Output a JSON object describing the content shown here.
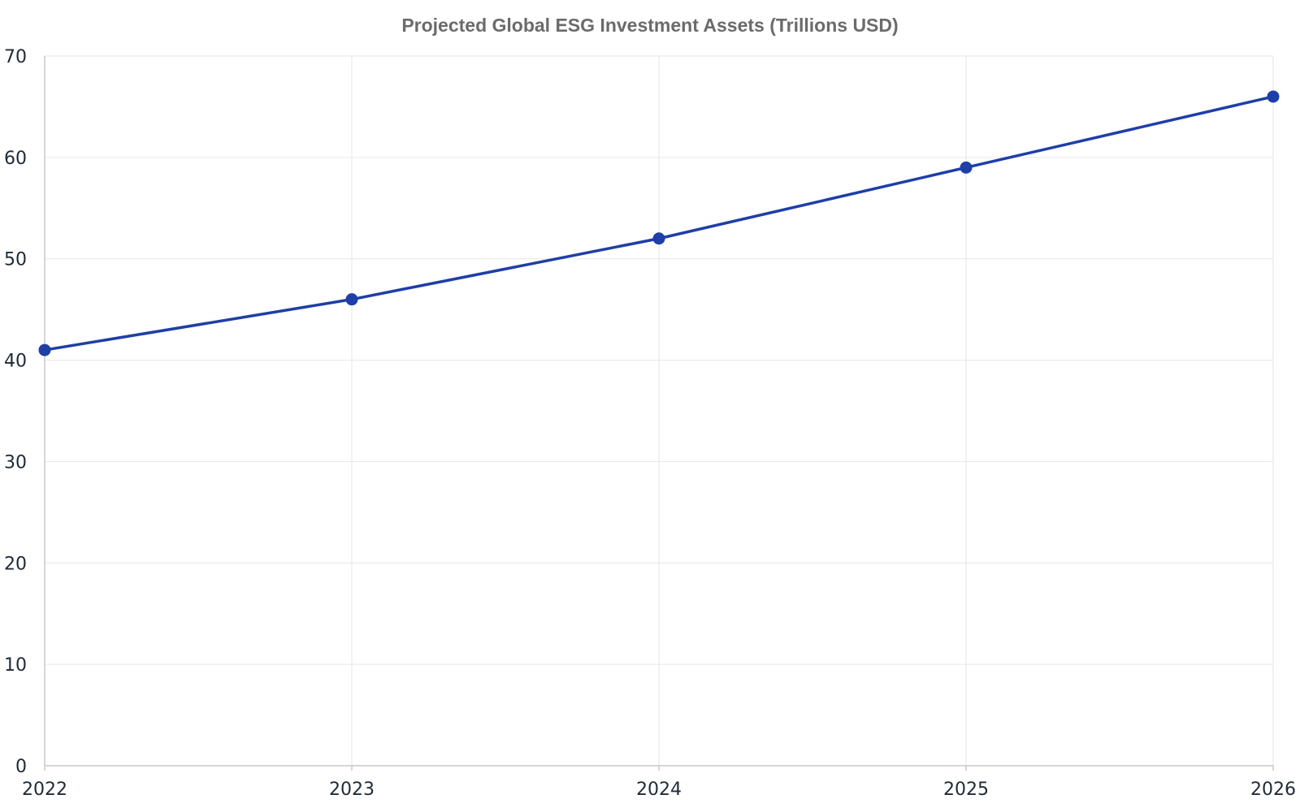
{
  "chart_data": {
    "type": "line",
    "title": "Projected Global ESG Investment Assets (Trillions USD)",
    "xlabel": "",
    "ylabel": "",
    "x": [
      "2022",
      "2023",
      "2024",
      "2025",
      "2026"
    ],
    "series": [
      {
        "values": [
          41,
          46,
          52,
          59,
          66
        ],
        "color": "#1e3ea8"
      }
    ],
    "ylim": [
      0,
      70
    ],
    "yticks": [
      0,
      10,
      20,
      30,
      40,
      50,
      60,
      70
    ],
    "grid": true,
    "legend": "none"
  }
}
